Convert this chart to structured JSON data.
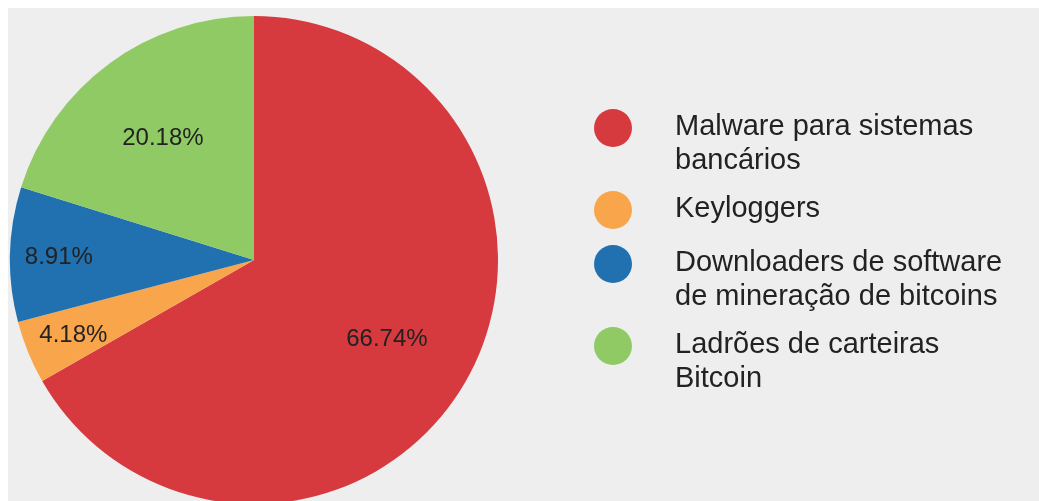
{
  "chart_data": {
    "type": "pie",
    "categories": [
      "Malware para sistemas bancários",
      "Keyloggers",
      "Downloaders de software de mineração de bitcoins",
      "Ladrões de carteiras Bitcoin"
    ],
    "values": [
      66.74,
      4.18,
      8.91,
      20.18
    ],
    "colors": [
      "#d63a3f",
      "#f8a54b",
      "#2170b0",
      "#8fca65"
    ],
    "value_labels": [
      "66.74%",
      "4.18%",
      "8.91%",
      "20.18%"
    ],
    "legend": "right"
  }
}
